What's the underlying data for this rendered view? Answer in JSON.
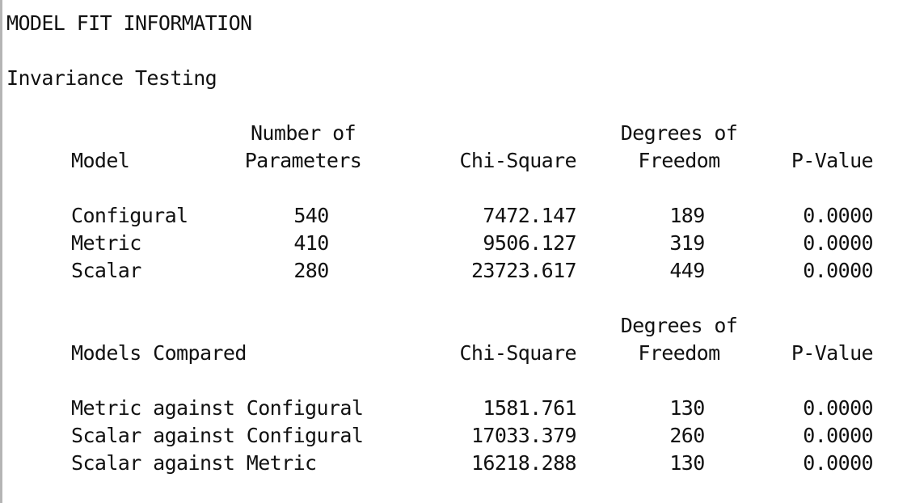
{
  "document": {
    "title": "MODEL FIT INFORMATION",
    "section": "Invariance Testing"
  },
  "models_table": {
    "headers": {
      "model": "Model",
      "params_line1": "Number of",
      "params_line2": "Parameters",
      "chisq": "Chi-Square",
      "df_line1": "Degrees of",
      "df_line2": "Freedom",
      "pvalue": "P-Value"
    },
    "rows": [
      {
        "model": "Configural",
        "params": "540",
        "chisq": "7472.147",
        "df": "189",
        "p": "0.0000"
      },
      {
        "model": "Metric",
        "params": "410",
        "chisq": "9506.127",
        "df": "319",
        "p": "0.0000"
      },
      {
        "model": "Scalar",
        "params": "280",
        "chisq": "23723.617",
        "df": "449",
        "p": "0.0000"
      }
    ]
  },
  "comparison_table": {
    "headers": {
      "models": "Models Compared",
      "chisq": "Chi-Square",
      "df_line1": "Degrees of",
      "df_line2": "Freedom",
      "pvalue": "P-Value"
    },
    "rows": [
      {
        "models": "Metric against Configural",
        "chisq": "1581.761",
        "df": "130",
        "p": "0.0000"
      },
      {
        "models": "Scalar against Configural",
        "chisq": "17033.379",
        "df": "260",
        "p": "0.0000"
      },
      {
        "models": "Scalar against Metric",
        "chisq": "16218.288",
        "df": "130",
        "p": "0.0000"
      }
    ]
  }
}
